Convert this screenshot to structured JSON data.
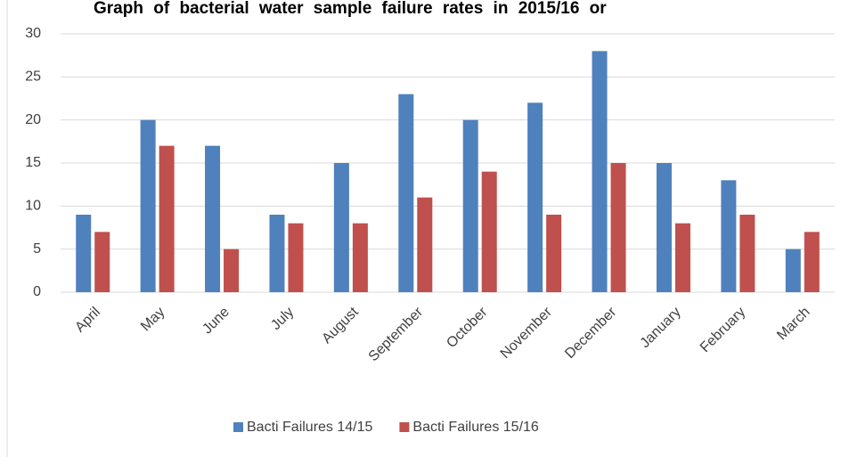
{
  "chart_data": {
    "type": "bar",
    "title": "Graph of bacterial water sample failure rates in 2015/16 or",
    "categories": [
      "April",
      "May",
      "June",
      "July",
      "August",
      "September",
      "October",
      "November",
      "December",
      "January",
      "February",
      "March"
    ],
    "series": [
      {
        "name": "Bacti Failures 14/15",
        "color": "#4f81bd",
        "values": [
          9,
          20,
          17,
          9,
          15,
          23,
          20,
          22,
          28,
          15,
          13,
          5
        ]
      },
      {
        "name": "Bacti Failures 15/16",
        "color": "#c0504d",
        "values": [
          7,
          17,
          5,
          8,
          8,
          11,
          14,
          9,
          15,
          8,
          9,
          7
        ]
      }
    ],
    "ylim": [
      0,
      30
    ],
    "yticks": [
      0,
      5,
      10,
      15,
      20,
      25,
      30
    ],
    "grid": true,
    "legend": "bottom"
  }
}
